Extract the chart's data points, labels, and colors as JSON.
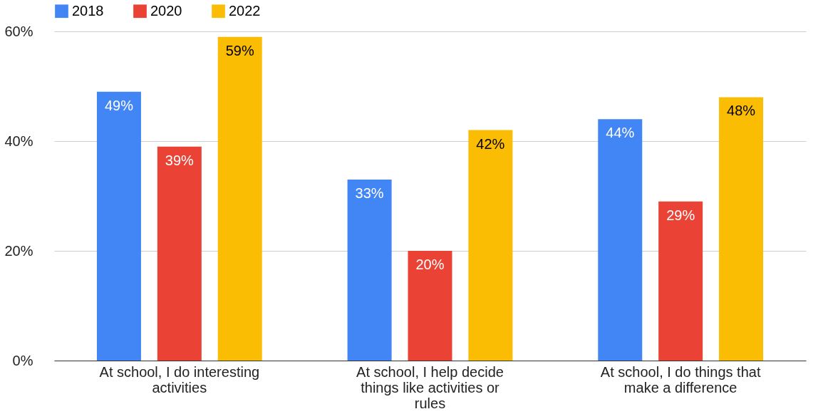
{
  "chart_data": {
    "type": "bar",
    "categories": [
      "At school, I do interesting activities",
      "At school, I help decide things like activities or rules",
      "At school, I do things that make a difference"
    ],
    "series": [
      {
        "name": "2018",
        "color": "#4285f4",
        "values": [
          49,
          33,
          44
        ],
        "value_labels": [
          "49%",
          "33%",
          "44%"
        ]
      },
      {
        "name": "2020",
        "color": "#ea4335",
        "values": [
          39,
          20,
          29
        ],
        "value_labels": [
          "39%",
          "20%",
          "29%"
        ]
      },
      {
        "name": "2022",
        "color": "#fbbc04",
        "values": [
          59,
          42,
          48
        ],
        "value_labels": [
          "59%",
          "42%",
          "48%"
        ]
      }
    ],
    "ylim": [
      0,
      60
    ],
    "yticks": [
      {
        "value": 0,
        "label": "0%"
      },
      {
        "value": 20,
        "label": "20%"
      },
      {
        "value": 40,
        "label": "40%"
      },
      {
        "value": 60,
        "label": "60%"
      }
    ],
    "grid": "y",
    "legend": "top"
  }
}
